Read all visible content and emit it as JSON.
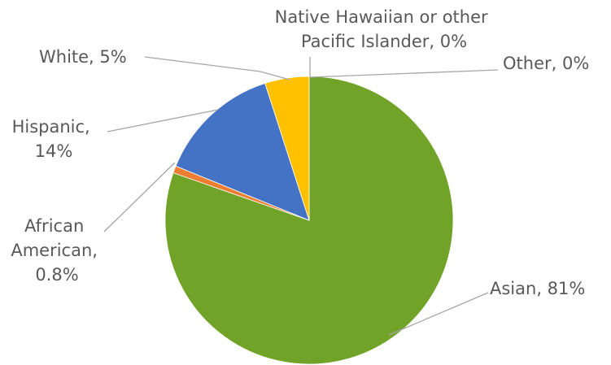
{
  "chart_data": {
    "type": "pie",
    "slices": [
      {
        "name": "Asian",
        "value": 81,
        "display": "81%",
        "color": "#72a329"
      },
      {
        "name": "African American",
        "value": 0.8,
        "display": "0.8%",
        "color": "#ed7d31"
      },
      {
        "name": "Hispanic",
        "value": 14,
        "display": "14%",
        "color": "#4472c4"
      },
      {
        "name": "White",
        "value": 5,
        "display": "5%",
        "color": "#ffc000"
      },
      {
        "name": "Native Hawaiian or other Pacific Islander",
        "value": 0,
        "display": "0%",
        "color": "#5b9bd5"
      },
      {
        "name": "Other",
        "value": 0,
        "display": "0%",
        "color": "#a5a5a5"
      }
    ],
    "labels": {
      "asian": "Asian, 81%",
      "african_american": [
        "African",
        "American,",
        "0.8%"
      ],
      "hispanic": [
        "Hispanic,",
        "14%"
      ],
      "white": "White, 5%",
      "native_hawaiian": [
        "Native Hawaiian or other",
        "Pacific Islander, 0%"
      ],
      "other": "Other, 0%"
    },
    "start_angle": "12 o'clock",
    "direction": "clockwise",
    "legend": "none",
    "data_labels": "outside with leader lines"
  }
}
